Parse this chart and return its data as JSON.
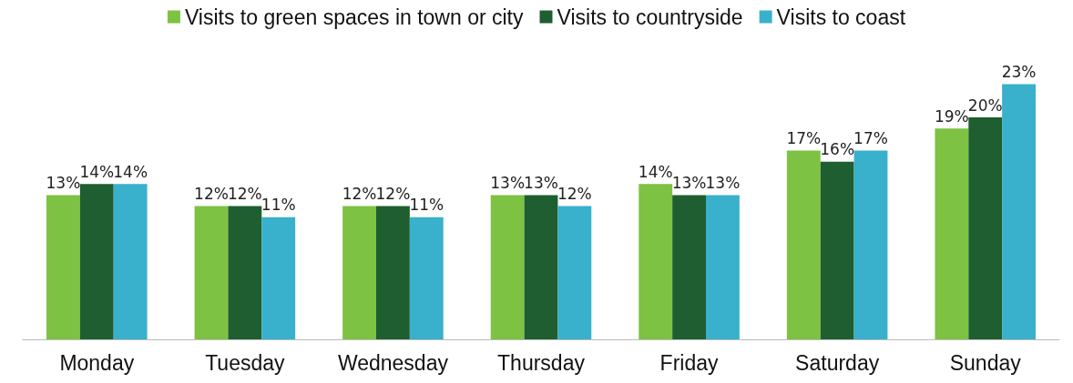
{
  "chart_data": {
    "type": "bar",
    "categories": [
      "Monday",
      "Tuesday",
      "Wednesday",
      "Thursday",
      "Friday",
      "Saturday",
      "Sunday"
    ],
    "series": [
      {
        "name": "Visits to green spaces in town or city",
        "color": "#7dc242",
        "values": [
          13,
          12,
          12,
          13,
          14,
          17,
          19
        ],
        "value_labels": [
          "13%",
          "12%",
          "12%",
          "13%",
          "14%",
          "17%",
          "19%"
        ]
      },
      {
        "name": "Visits to countryside",
        "color": "#1e5e30",
        "values": [
          14,
          12,
          12,
          13,
          13,
          16,
          20
        ],
        "value_labels": [
          "14%",
          "12%",
          "12%",
          "13%",
          "13%",
          "16%",
          "20%"
        ]
      },
      {
        "name": "Visits to coast",
        "color": "#39b0cc",
        "values": [
          14,
          11,
          11,
          12,
          13,
          17,
          23
        ],
        "value_labels": [
          "14%",
          "11%",
          "11%",
          "12%",
          "13%",
          "17%",
          "23%"
        ]
      }
    ],
    "legend": "top"
  }
}
